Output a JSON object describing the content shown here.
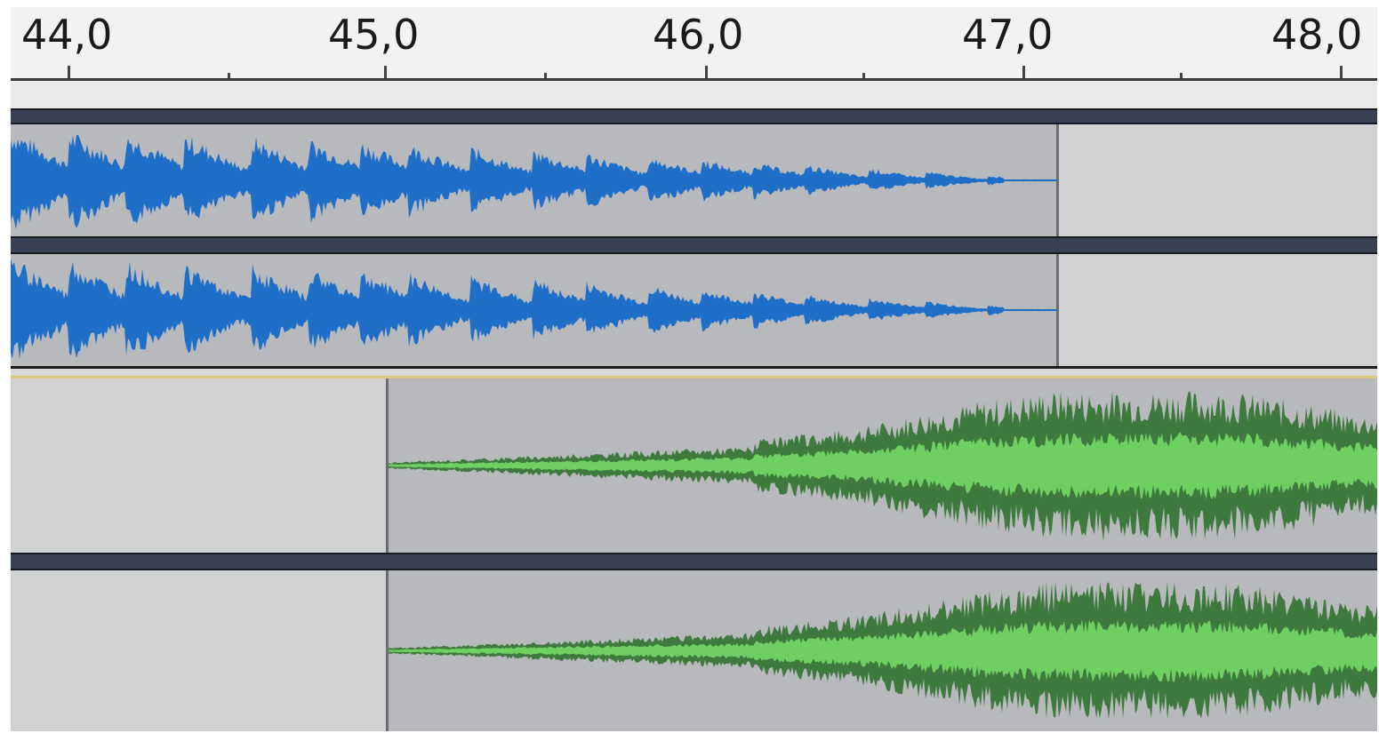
{
  "timeline": {
    "unit": "seconds",
    "labels": [
      "44,0",
      "45,0",
      "46,0",
      "47,0",
      "48,0"
    ],
    "values": [
      44.0,
      45.0,
      46.0,
      47.0,
      48.0
    ]
  },
  "tracks": [
    {
      "name": "",
      "color": "#1f6fc9",
      "clip_start_s": 43.8,
      "clip_end_s": 47.1,
      "channels": 2,
      "fade": "out"
    },
    {
      "name": "",
      "color_outer": "#3e7a3e",
      "color_inner": "#6fcf62",
      "clip_start_s": 45.0,
      "clip_end_s": 48.1,
      "channels": 2,
      "fade": "in"
    }
  ],
  "colors": {
    "lane_bg": "#cfd1d3",
    "active_bg": "#b7b9bc",
    "clip_header": "#3b4154",
    "ruler_bg": "#f2f2f2"
  }
}
